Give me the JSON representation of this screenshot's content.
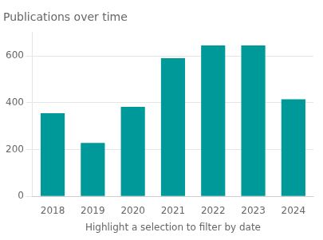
{
  "chart_data": {
    "type": "bar",
    "title": "Publications over time",
    "xlabel": "Highlight a selection to filter by date",
    "categories": [
      "2018",
      "2019",
      "2020",
      "2021",
      "2022",
      "2023",
      "2024"
    ],
    "values": [
      355,
      228,
      382,
      590,
      645,
      645,
      415
    ],
    "color": "#009999",
    "ylim": [
      0,
      700
    ],
    "yticks": [
      0,
      200,
      400,
      600
    ],
    "grid": true
  }
}
